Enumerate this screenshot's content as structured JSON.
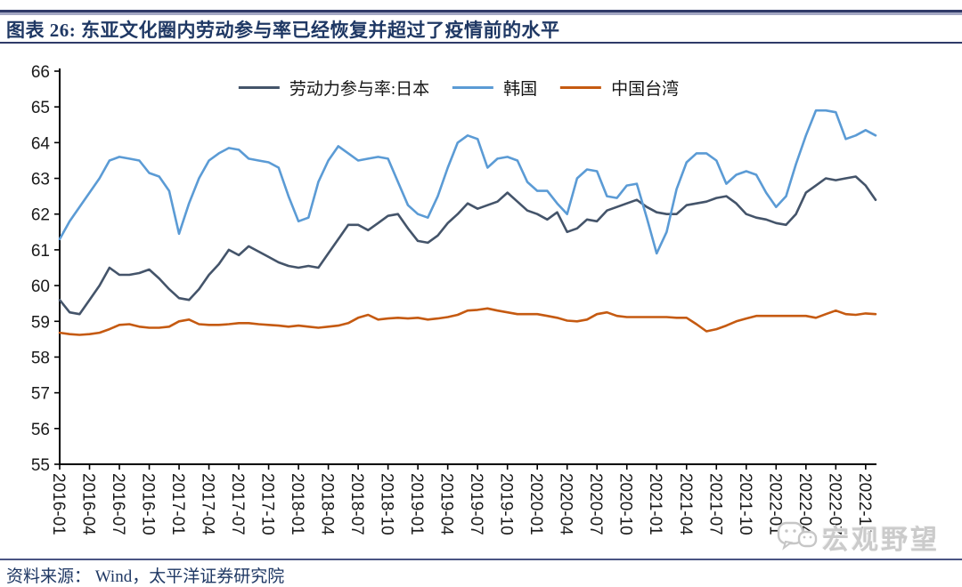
{
  "header": {
    "title": "图表 26:  东亚文化圈内劳动参与率已经恢复并超过了疫情前的水平"
  },
  "footer": {
    "source": "资料来源：  Wind，太平洋证券研究院"
  },
  "watermark": {
    "icon": "wechat-icon",
    "text": "宏观野望"
  },
  "chart_data": {
    "type": "line",
    "title": "东亚文化圈内劳动参与率已经恢复并超过了疫情前的水平",
    "xlabel": "",
    "ylabel": "",
    "ylim": [
      55,
      66
    ],
    "grid": false,
    "legend_position": "top-center",
    "yticks": [
      55,
      56,
      57,
      58,
      59,
      60,
      61,
      62,
      63,
      64,
      65,
      66
    ],
    "x_tick_labels": [
      "2016-01",
      "2016-04",
      "2016-07",
      "2016-10",
      "2017-01",
      "2017-04",
      "2017-07",
      "2017-10",
      "2018-01",
      "2018-04",
      "2018-07",
      "2018-10",
      "2019-01",
      "2019-04",
      "2019-07",
      "2019-10",
      "2020-01",
      "2020-04",
      "2020-07",
      "2020-10",
      "2021-01",
      "2021-04",
      "2021-07",
      "2021-10",
      "2022-01",
      "2022-04",
      "2022-07",
      "2022-10"
    ],
    "x_range_months": "2016-01 to 2022-11, monthly",
    "series": [
      {
        "name": "劳动力参与率:日本",
        "color": "#44546A",
        "values": [
          59.6,
          59.25,
          59.2,
          59.6,
          60.0,
          60.5,
          60.3,
          60.3,
          60.35,
          60.45,
          60.2,
          59.9,
          59.65,
          59.6,
          59.9,
          60.3,
          60.6,
          61.0,
          60.85,
          61.1,
          60.95,
          60.8,
          60.65,
          60.55,
          60.5,
          60.55,
          60.5,
          60.9,
          61.3,
          61.7,
          61.7,
          61.55,
          61.75,
          61.95,
          62.0,
          61.6,
          61.25,
          61.2,
          61.4,
          61.75,
          62.0,
          62.3,
          62.15,
          62.25,
          62.35,
          62.6,
          62.35,
          62.1,
          62.0,
          61.85,
          62.05,
          61.5,
          61.6,
          61.85,
          61.8,
          62.1,
          62.2,
          62.3,
          62.4,
          62.2,
          62.05,
          62.0,
          62.0,
          62.25,
          62.3,
          62.35,
          62.45,
          62.5,
          62.3,
          62.0,
          61.9,
          61.85,
          61.75,
          61.7,
          62.0,
          62.6,
          62.8,
          63.0,
          62.95,
          63.0,
          63.05,
          62.8,
          62.4
        ]
      },
      {
        "name": "韩国",
        "color": "#5B9BD5",
        "values": [
          61.3,
          61.8,
          62.2,
          62.6,
          63.0,
          63.5,
          63.6,
          63.55,
          63.5,
          63.15,
          63.05,
          62.65,
          61.45,
          62.3,
          63.0,
          63.5,
          63.7,
          63.85,
          63.8,
          63.55,
          63.5,
          63.45,
          63.3,
          62.5,
          61.8,
          61.9,
          62.9,
          63.5,
          63.9,
          63.7,
          63.5,
          63.55,
          63.6,
          63.55,
          62.9,
          62.25,
          62.0,
          61.9,
          62.5,
          63.3,
          64.0,
          64.2,
          64.1,
          63.3,
          63.55,
          63.6,
          63.5,
          62.9,
          62.65,
          62.65,
          62.3,
          62.0,
          63.0,
          63.25,
          63.2,
          62.5,
          62.45,
          62.8,
          62.85,
          61.9,
          60.9,
          61.5,
          62.7,
          63.45,
          63.7,
          63.7,
          63.5,
          62.85,
          63.1,
          63.2,
          63.1,
          62.6,
          62.2,
          62.5,
          63.4,
          64.2,
          64.9,
          64.9,
          64.85,
          64.1,
          64.2,
          64.35,
          64.2
        ]
      },
      {
        "name": "中国台湾",
        "color": "#C55A11",
        "values": [
          58.68,
          58.64,
          58.62,
          58.64,
          58.68,
          58.78,
          58.9,
          58.92,
          58.85,
          58.82,
          58.82,
          58.85,
          59.0,
          59.05,
          58.92,
          58.9,
          58.9,
          58.92,
          58.95,
          58.95,
          58.92,
          58.9,
          58.88,
          58.85,
          58.88,
          58.85,
          58.82,
          58.85,
          58.88,
          58.95,
          59.1,
          59.18,
          59.05,
          59.08,
          59.1,
          59.08,
          59.1,
          59.05,
          59.08,
          59.12,
          59.18,
          59.3,
          59.32,
          59.36,
          59.3,
          59.25,
          59.2,
          59.2,
          59.2,
          59.15,
          59.1,
          59.02,
          59.0,
          59.05,
          59.2,
          59.25,
          59.15,
          59.12,
          59.12,
          59.12,
          59.12,
          59.12,
          59.1,
          59.1,
          58.92,
          58.72,
          58.78,
          58.88,
          59.0,
          59.08,
          59.15,
          59.15,
          59.15,
          59.15,
          59.15,
          59.15,
          59.1,
          59.2,
          59.3,
          59.2,
          59.18,
          59.22,
          59.2
        ]
      }
    ]
  }
}
